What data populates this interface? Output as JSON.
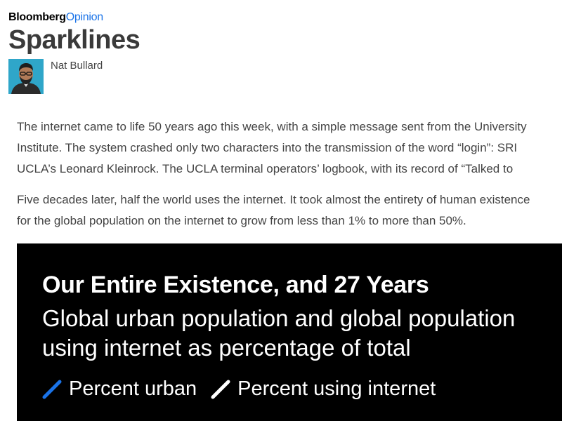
{
  "header": {
    "brand_primary": "Bloomberg",
    "brand_secondary": "Opinion",
    "title": "Sparklines",
    "author": "Nat Bullard"
  },
  "article": {
    "para1_lines": [
      "The internet came to life 50 years ago this week, with a simple message sent from the University",
      "Institute. The system crashed only two characters into the transmission of the word “login”: SRI",
      "UCLA’s Leonard Kleinrock. The UCLA terminal operators’ logbook, with its record of “Talked to"
    ],
    "para2_lines": [
      "Five decades later, half the world uses the internet. It took almost the entirety of human existence",
      "for the global population on the internet to grow from less than 1% to more than 50%."
    ]
  },
  "chart": {
    "title": "Our Entire Existence, and 27 Years",
    "subtitle": "Global urban population and global population using internet as percentage of total",
    "legend": [
      {
        "label": "Percent urban",
        "color": "#1a73e8"
      },
      {
        "label": "Percent using internet",
        "color": "#ffffff"
      }
    ]
  },
  "icons": {
    "avatar": "author-avatar",
    "legend_urban": "line-swatch-icon",
    "legend_internet": "line-swatch-icon"
  }
}
